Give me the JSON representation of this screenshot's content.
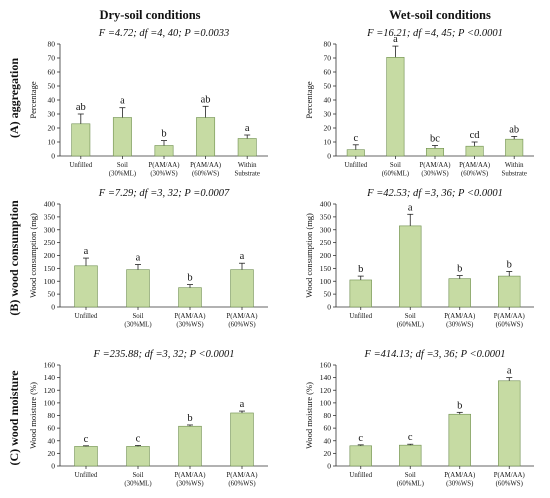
{
  "columns": [
    "Dry-soil conditions",
    "Wet-soil conditions"
  ],
  "rows": [
    "(A) aggregation",
    "(B) wood consumption",
    "(C) wood moisture"
  ],
  "chart_data": [
    {
      "type": "bar",
      "row": 0,
      "col": 0,
      "stats": "F =4.72; df =4, 40; P =0.0033",
      "ylabel": "Percentage",
      "ylim": [
        0,
        80
      ],
      "yticks": [
        0,
        10,
        20,
        30,
        40,
        50,
        60,
        70,
        80
      ],
      "categories": [
        [
          "Unfilled"
        ],
        [
          "Soil",
          "(30%ML)"
        ],
        [
          "P(AM/AA)",
          "(30%WS)"
        ],
        [
          "P(AM/AA)",
          "(60%WS)"
        ],
        [
          "Within",
          "Substrate"
        ]
      ],
      "values": [
        23,
        27.5,
        7.5,
        27.5,
        12.5
      ],
      "errors": [
        7,
        7,
        3.5,
        8,
        2.5
      ],
      "letters": [
        "ab",
        "a",
        "b",
        "ab",
        "a"
      ]
    },
    {
      "type": "bar",
      "row": 0,
      "col": 1,
      "stats": "F =16.21; df =4, 45; P <0.0001",
      "ylabel": "Percentage",
      "ylim": [
        0,
        80
      ],
      "yticks": [
        0,
        10,
        20,
        30,
        40,
        50,
        60,
        70,
        80
      ],
      "categories": [
        [
          "Unfilled"
        ],
        [
          "Soil",
          "(60%ML)"
        ],
        [
          "P(AM/AA)",
          "(30%WS)"
        ],
        [
          "P(AM/AA)",
          "(60%WS)"
        ],
        [
          "Within",
          "Substrate"
        ]
      ],
      "values": [
        4.5,
        70.5,
        5.5,
        7,
        12
      ],
      "errors": [
        3.5,
        8,
        2,
        3,
        2
      ],
      "letters": [
        "c",
        "a",
        "bc",
        "cd",
        "ab"
      ]
    },
    {
      "type": "bar",
      "row": 1,
      "col": 0,
      "stats": "F =7.29; df =3, 32; P =0.0007",
      "ylabel": "Wood consumption (mg)",
      "ylim": [
        0,
        400
      ],
      "yticks": [
        0,
        50,
        100,
        150,
        200,
        250,
        300,
        350,
        400
      ],
      "categories": [
        [
          "Unfilled"
        ],
        [
          "Soil",
          "(30%ML)"
        ],
        [
          "P(AM/AA)",
          "(30%WS)"
        ],
        [
          "P(AM/AA)",
          "(60%WS)"
        ]
      ],
      "values": [
        160,
        145,
        75,
        145
      ],
      "errors": [
        30,
        20,
        12,
        25
      ],
      "letters": [
        "a",
        "a",
        "b",
        "a"
      ]
    },
    {
      "type": "bar",
      "row": 1,
      "col": 1,
      "stats": "F =42.53; df =3, 36; P <0.0001",
      "ylabel": "Wood consumption (mg)",
      "ylim": [
        0,
        400
      ],
      "yticks": [
        0,
        50,
        100,
        150,
        200,
        250,
        300,
        350,
        400
      ],
      "categories": [
        [
          "Unfilled"
        ],
        [
          "Soil",
          "(60%ML)"
        ],
        [
          "P(AM/AA)",
          "(30%WS)"
        ],
        [
          "P(AM/AA)",
          "(60%WS)"
        ]
      ],
      "values": [
        105,
        315,
        110,
        120
      ],
      "errors": [
        15,
        45,
        12,
        18
      ],
      "letters": [
        "b",
        "a",
        "b",
        "b"
      ]
    },
    {
      "type": "bar",
      "row": 2,
      "col": 0,
      "stats": "F =235.88; df =3, 32; P <0.0001",
      "ylabel": "Wood moisture (%)",
      "ylim": [
        0,
        160
      ],
      "yticks": [
        0,
        20,
        40,
        60,
        80,
        100,
        120,
        140,
        160
      ],
      "categories": [
        [
          "Unfilled"
        ],
        [
          "Soil",
          "(30%ML)"
        ],
        [
          "P(AM/AA)",
          "(30%WS)"
        ],
        [
          "P(AM/AA)",
          "(60%WS)"
        ]
      ],
      "values": [
        31,
        31,
        63,
        84
      ],
      "errors": [
        1,
        1.5,
        2,
        3
      ],
      "letters": [
        "c",
        "c",
        "b",
        "a"
      ]
    },
    {
      "type": "bar",
      "row": 2,
      "col": 1,
      "stats": "F =414.13; df =3, 36; P <0.0001",
      "ylabel": "Wood moisture (%)",
      "ylim": [
        0,
        160
      ],
      "yticks": [
        0,
        20,
        40,
        60,
        80,
        100,
        120,
        140,
        160
      ],
      "categories": [
        [
          "Unfilled"
        ],
        [
          "Soil",
          "(60%ML)"
        ],
        [
          "P(AM/AA)",
          "(30%WS)"
        ],
        [
          "P(AM/AA)",
          "(60%WS)"
        ]
      ],
      "values": [
        32,
        33,
        82,
        135
      ],
      "errors": [
        1.5,
        1.5,
        3,
        5
      ],
      "letters": [
        "c",
        "c",
        "b",
        "a"
      ]
    }
  ]
}
